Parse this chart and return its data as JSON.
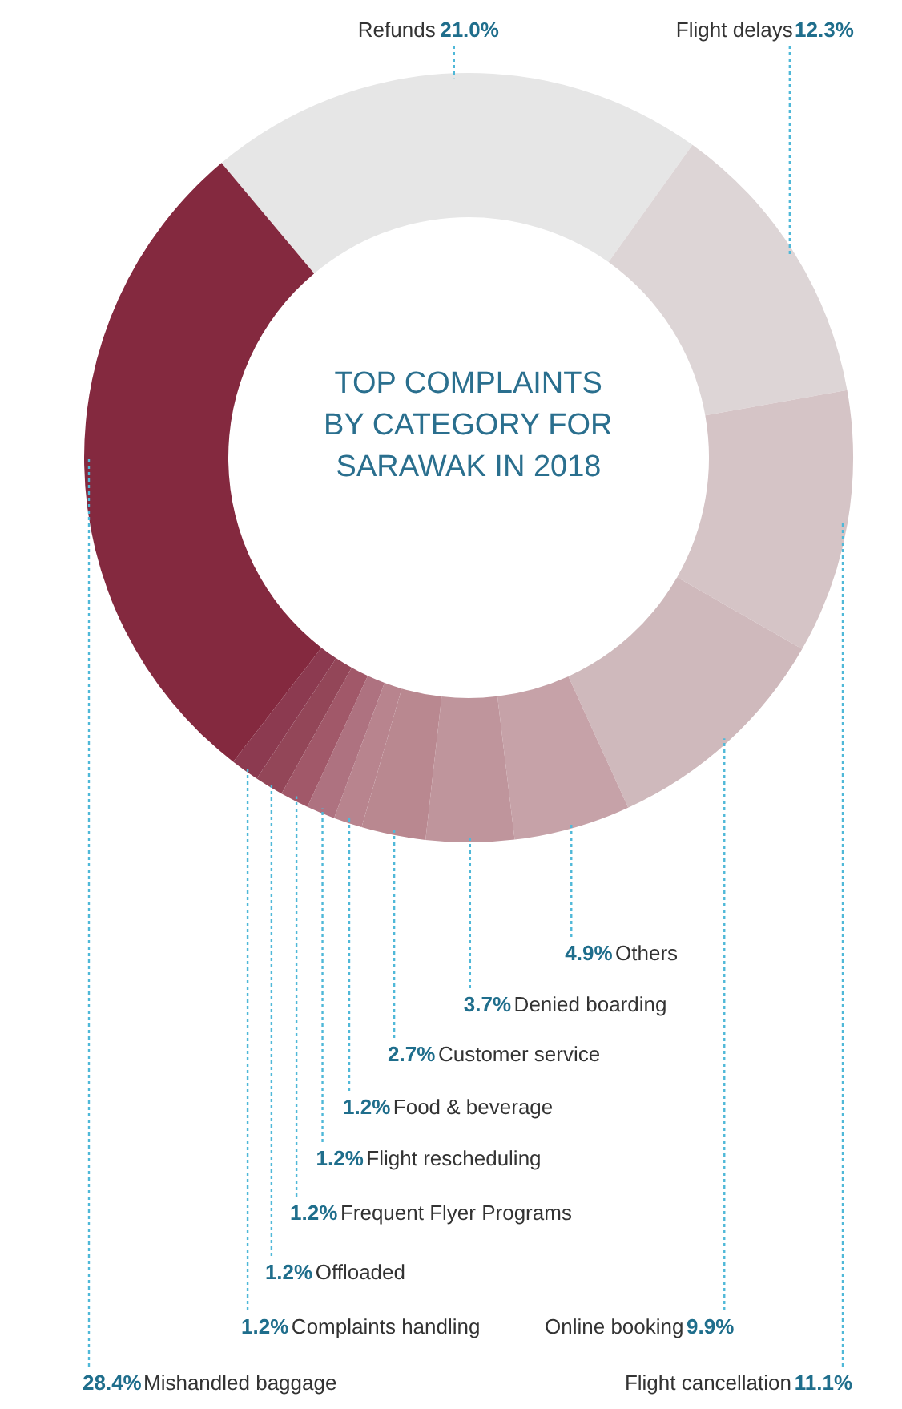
{
  "chart_data": {
    "type": "donut",
    "title": "TOP COMPLAINTS\nBY CATEGORY FOR\nSARAWAK IN 2018",
    "categories": [
      "Refunds",
      "Flight delays",
      "Flight cancellation",
      "Online booking",
      "Others",
      "Denied boarding",
      "Customer service",
      "Food & beverage",
      "Flight rescheduling",
      "Frequent Flyer Programs",
      "Offloaded",
      "Complaints handling",
      "Mishandled baggage"
    ],
    "values": [
      21.0,
      12.3,
      11.1,
      9.9,
      4.9,
      3.7,
      2.7,
      1.2,
      1.2,
      1.2,
      1.2,
      1.2,
      28.4
    ],
    "value_labels": [
      "21.0%",
      "12.3%",
      "11.1%",
      "9.9%",
      "4.9%",
      "3.7%",
      "2.7%",
      "1.2%",
      "1.2%",
      "1.2%",
      "1.2%",
      "1.2%",
      "28.4%"
    ],
    "colors": [
      "#e6e6e6",
      "#ddd5d6",
      "#d5c4c6",
      "#cfb9bc",
      "#c6a2a8",
      "#bf959c",
      "#b98890",
      "#b8848e",
      "#ae7280",
      "#a15869",
      "#934658",
      "#8c3a50",
      "#84293f"
    ]
  }
}
